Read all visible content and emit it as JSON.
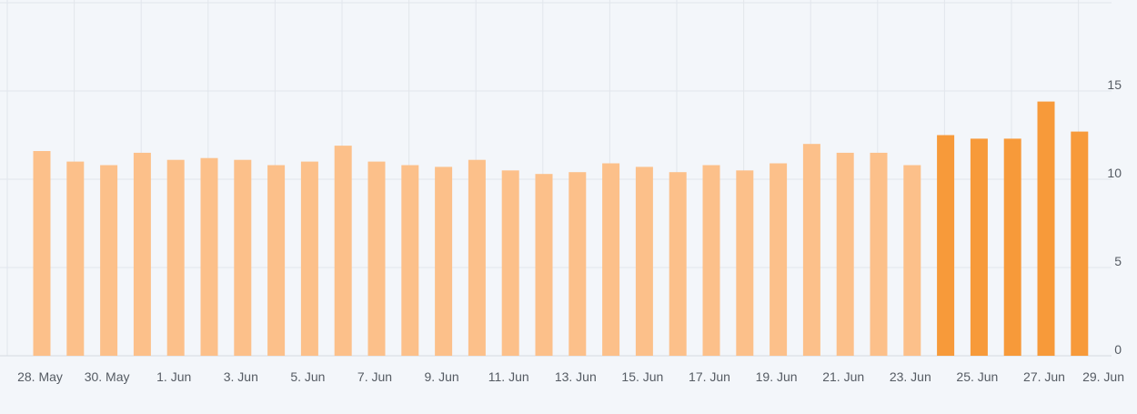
{
  "chart_data": {
    "type": "bar",
    "title": "",
    "xlabel": "",
    "ylabel": "",
    "ylim": [
      0,
      20
    ],
    "grid": true,
    "y_ticks": [
      0,
      5,
      10,
      15
    ],
    "y_tick_labels": [
      "0",
      "5",
      "10",
      "15"
    ],
    "categories": [
      "28 May",
      "29 May",
      "30 May",
      "31 May",
      "1 Jun",
      "2 Jun",
      "3 Jun",
      "4 Jun",
      "5 Jun",
      "6 Jun",
      "7 Jun",
      "8 Jun",
      "9 Jun",
      "10 Jun",
      "11 Jun",
      "12 Jun",
      "13 Jun",
      "14 Jun",
      "15 Jun",
      "16 Jun",
      "17 Jun",
      "18 Jun",
      "19 Jun",
      "20 Jun",
      "21 Jun",
      "22 Jun",
      "23 Jun",
      "24 Jun",
      "25 Jun",
      "26 Jun",
      "27 Jun",
      "28 Jun"
    ],
    "values": [
      11.6,
      11.0,
      10.8,
      11.5,
      11.1,
      11.2,
      11.1,
      10.8,
      11.0,
      11.9,
      11.0,
      10.8,
      10.7,
      11.1,
      10.5,
      10.3,
      10.4,
      10.9,
      10.7,
      10.4,
      10.8,
      10.5,
      10.9,
      12.0,
      11.5,
      11.5,
      10.8,
      12.5,
      12.3,
      12.3,
      14.4,
      12.7
    ],
    "highlight_from_index": 27,
    "x_tick_labels": [
      {
        "index": 0,
        "label": "28. May"
      },
      {
        "index": 2,
        "label": "30. May"
      },
      {
        "index": 4,
        "label": "1. Jun"
      },
      {
        "index": 6,
        "label": "3. Jun"
      },
      {
        "index": 8,
        "label": "5. Jun"
      },
      {
        "index": 10,
        "label": "7. Jun"
      },
      {
        "index": 12,
        "label": "9. Jun"
      },
      {
        "index": 14,
        "label": "11. Jun"
      },
      {
        "index": 16,
        "label": "13. Jun"
      },
      {
        "index": 18,
        "label": "15. Jun"
      },
      {
        "index": 20,
        "label": "17. Jun"
      },
      {
        "index": 22,
        "label": "19. Jun"
      },
      {
        "index": 24,
        "label": "21. Jun"
      },
      {
        "index": 26,
        "label": "23. Jun"
      },
      {
        "index": 28,
        "label": "25. Jun"
      },
      {
        "index": 30,
        "label": "27. Jun"
      },
      {
        "index": 32,
        "label": "29. Jun"
      }
    ],
    "colors": {
      "bar": "#fcc08a",
      "bar_highlight": "#f79a3a",
      "grid": "#e2e6ec",
      "text": "#555b63"
    }
  }
}
